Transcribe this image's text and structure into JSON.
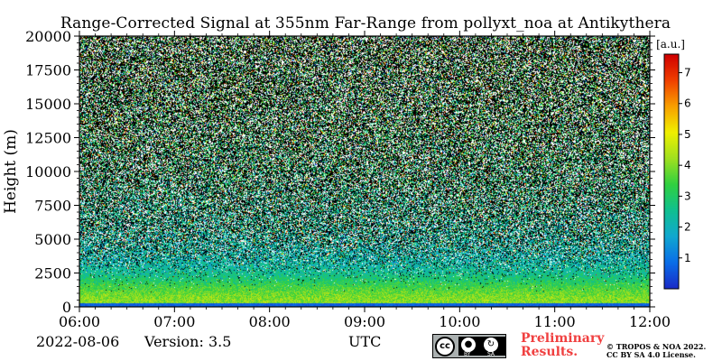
{
  "header": {
    "title": "Range-Corrected Signal at 355nm Far-Range from pollyxt_noa at Antikythera"
  },
  "footer": {
    "date": "2022-08-06",
    "version": "Version: 3.5",
    "xunit": "UTC",
    "cc_badge": {
      "cc": "cc",
      "by": "BY",
      "sa": "SA"
    },
    "preliminary_line1": "Preliminary",
    "preliminary_line2": "Results.",
    "copyright_line1": "© TROPOS & NOA 2022.",
    "copyright_line2": "CC BY SA 4.0 License."
  },
  "colors": {
    "colormap": [
      "#1a2cc8",
      "#0a6ee8",
      "#10a8d0",
      "#10c090",
      "#30d040",
      "#a0e020",
      "#f0f000",
      "#f8a000",
      "#f04000",
      "#d00000"
    ],
    "background_noise": "#000000",
    "missing": "#ffffff"
  },
  "chart_data": {
    "type": "heatmap",
    "title": "Range-Corrected Signal at 355nm Far-Range from pollyxt_noa at Antikythera",
    "xlabel": "",
    "ylabel": "Height (m)",
    "x_ticks": [
      "06:00",
      "07:00",
      "08:00",
      "09:00",
      "10:00",
      "11:00",
      "12:00"
    ],
    "xlim": [
      "06:00",
      "12:00"
    ],
    "y_ticks": [
      0,
      2500,
      5000,
      7500,
      10000,
      12500,
      15000,
      17500,
      20000
    ],
    "ylim": [
      0,
      20000
    ],
    "colorbar": {
      "label": "[a.u.]",
      "range": [
        0,
        7.6
      ],
      "ticks": [
        1,
        2,
        3,
        4,
        5,
        6,
        7
      ]
    },
    "profile": {
      "height_m": [
        0,
        300,
        700,
        1000,
        1500,
        2000,
        2500,
        3000,
        3500,
        4000,
        5000,
        6000,
        8000,
        10000,
        13000,
        16000,
        20000
      ],
      "signal": [
        3.6,
        4.1,
        4.0,
        3.8,
        3.4,
        2.9,
        2.5,
        2.3,
        2.2,
        2.2,
        2.3,
        2.4,
        2.6,
        2.8,
        3.0,
        3.1,
        3.2
      ],
      "noise_fraction": [
        0.0,
        0.0,
        0.0,
        0.0,
        0.02,
        0.05,
        0.12,
        0.22,
        0.33,
        0.45,
        0.58,
        0.66,
        0.72,
        0.78,
        0.82,
        0.85,
        0.88
      ]
    }
  }
}
